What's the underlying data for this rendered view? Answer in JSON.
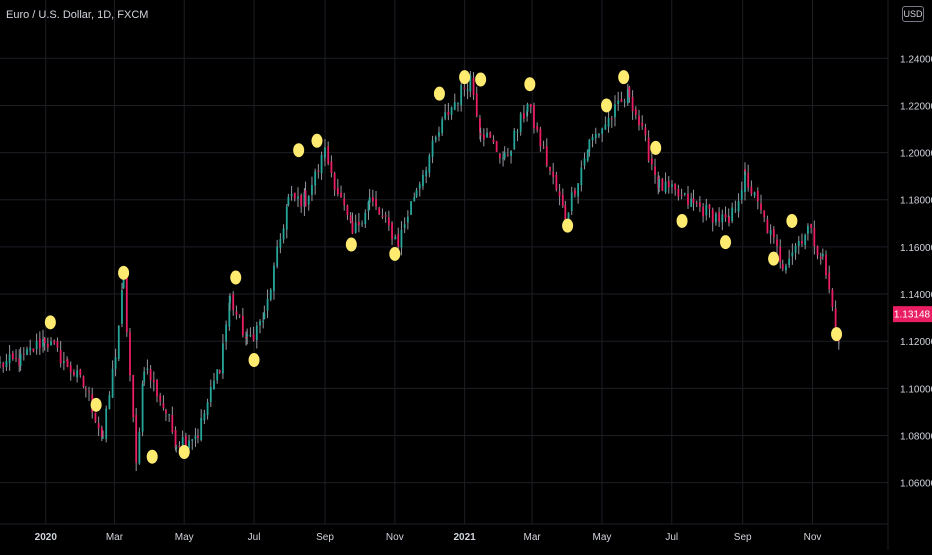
{
  "header": {
    "symbol_title": "Euro / U.S. Dollar, 1D, FXCM",
    "currency_button": "USD"
  },
  "colors": {
    "background": "#000000",
    "up": "#26a69a",
    "down": "#e91e63",
    "wick": "#9598a1",
    "marker": "#ffeb70",
    "grid": "#1c1e24",
    "axis_text": "#d1d4dc",
    "last_price_bg": "#e91e63"
  },
  "chart_data": {
    "type": "candlestick",
    "title": "Euro / U.S. Dollar, 1D, FXCM",
    "ylim": [
      1.045,
      1.252
    ],
    "y_ticks": [
      "1.24000",
      "1.22000",
      "1.20000",
      "1.18000",
      "1.16000",
      "1.14000",
      "1.12000",
      "1.10000",
      "1.08000",
      "1.06000"
    ],
    "y_tick_values": [
      1.24,
      1.22,
      1.2,
      1.18,
      1.16,
      1.14,
      1.12,
      1.1,
      1.08,
      1.06
    ],
    "x_ticks": [
      {
        "label": "2020",
        "date": "2020-01-01",
        "bold": true
      },
      {
        "label": "Mar",
        "date": "2020-03-01",
        "bold": false
      },
      {
        "label": "May",
        "date": "2020-05-01",
        "bold": false
      },
      {
        "label": "Jul",
        "date": "2020-07-01",
        "bold": false
      },
      {
        "label": "Sep",
        "date": "2020-09-01",
        "bold": false
      },
      {
        "label": "Nov",
        "date": "2020-11-01",
        "bold": false
      },
      {
        "label": "2021",
        "date": "2021-01-01",
        "bold": true
      },
      {
        "label": "Mar",
        "date": "2021-03-01",
        "bold": false
      },
      {
        "label": "May",
        "date": "2021-05-01",
        "bold": false
      },
      {
        "label": "Jul",
        "date": "2021-07-01",
        "bold": false
      },
      {
        "label": "Sep",
        "date": "2021-09-01",
        "bold": false
      },
      {
        "label": "Nov",
        "date": "2021-11-01",
        "bold": false
      }
    ],
    "xlim": [
      "2019-11-22",
      "2021-12-16"
    ],
    "last_price": "1.13148",
    "last_price_value": 1.13148,
    "price_path": [
      [
        "2019-11-22",
        1.11
      ],
      [
        "2019-12-10",
        1.112
      ],
      [
        "2019-12-31",
        1.121
      ],
      [
        "2020-01-20",
        1.11
      ],
      [
        "2020-02-05",
        1.1
      ],
      [
        "2020-02-20",
        1.079
      ],
      [
        "2020-03-02",
        1.115
      ],
      [
        "2020-03-09",
        1.145
      ],
      [
        "2020-03-20",
        1.067
      ],
      [
        "2020-03-27",
        1.11
      ],
      [
        "2020-04-15",
        1.09
      ],
      [
        "2020-04-24",
        1.077
      ],
      [
        "2020-05-13",
        1.081
      ],
      [
        "2020-06-01",
        1.11
      ],
      [
        "2020-06-10",
        1.138
      ],
      [
        "2020-06-25",
        1.12
      ],
      [
        "2020-07-10",
        1.13
      ],
      [
        "2020-07-31",
        1.18
      ],
      [
        "2020-08-15",
        1.18
      ],
      [
        "2020-09-01",
        1.2
      ],
      [
        "2020-09-25",
        1.165
      ],
      [
        "2020-10-10",
        1.18
      ],
      [
        "2020-11-04",
        1.162
      ],
      [
        "2020-11-20",
        1.185
      ],
      [
        "2020-12-15",
        1.215
      ],
      [
        "2021-01-06",
        1.232
      ],
      [
        "2021-01-15",
        1.21
      ],
      [
        "2021-02-05",
        1.197
      ],
      [
        "2021-02-25",
        1.22
      ],
      [
        "2021-03-30",
        1.173
      ],
      [
        "2021-04-20",
        1.204
      ],
      [
        "2021-05-25",
        1.225
      ],
      [
        "2021-06-20",
        1.186
      ],
      [
        "2021-07-20",
        1.178
      ],
      [
        "2021-08-20",
        1.17
      ],
      [
        "2021-09-03",
        1.19
      ],
      [
        "2021-10-06",
        1.153
      ],
      [
        "2021-10-28",
        1.168
      ],
      [
        "2021-11-10",
        1.155
      ],
      [
        "2021-11-24",
        1.12
      ]
    ],
    "markers": [
      {
        "date": "2020-01-05",
        "value": 1.128
      },
      {
        "date": "2020-02-14",
        "value": 1.093
      },
      {
        "date": "2020-03-09",
        "value": 1.149
      },
      {
        "date": "2020-04-03",
        "value": 1.071
      },
      {
        "date": "2020-05-01",
        "value": 1.073
      },
      {
        "date": "2020-06-15",
        "value": 1.147
      },
      {
        "date": "2020-07-01",
        "value": 1.112
      },
      {
        "date": "2020-08-09",
        "value": 1.201
      },
      {
        "date": "2020-08-25",
        "value": 1.205
      },
      {
        "date": "2020-09-24",
        "value": 1.161
      },
      {
        "date": "2020-11-01",
        "value": 1.157
      },
      {
        "date": "2020-12-10",
        "value": 1.225
      },
      {
        "date": "2021-01-01",
        "value": 1.232
      },
      {
        "date": "2021-01-15",
        "value": 1.231
      },
      {
        "date": "2021-02-27",
        "value": 1.229
      },
      {
        "date": "2021-04-01",
        "value": 1.169
      },
      {
        "date": "2021-05-05",
        "value": 1.22
      },
      {
        "date": "2021-05-20",
        "value": 1.232
      },
      {
        "date": "2021-06-17",
        "value": 1.202
      },
      {
        "date": "2021-07-10",
        "value": 1.171
      },
      {
        "date": "2021-08-17",
        "value": 1.162
      },
      {
        "date": "2021-09-28",
        "value": 1.155
      },
      {
        "date": "2021-10-14",
        "value": 1.171
      },
      {
        "date": "2021-11-22",
        "value": 1.123
      }
    ]
  }
}
